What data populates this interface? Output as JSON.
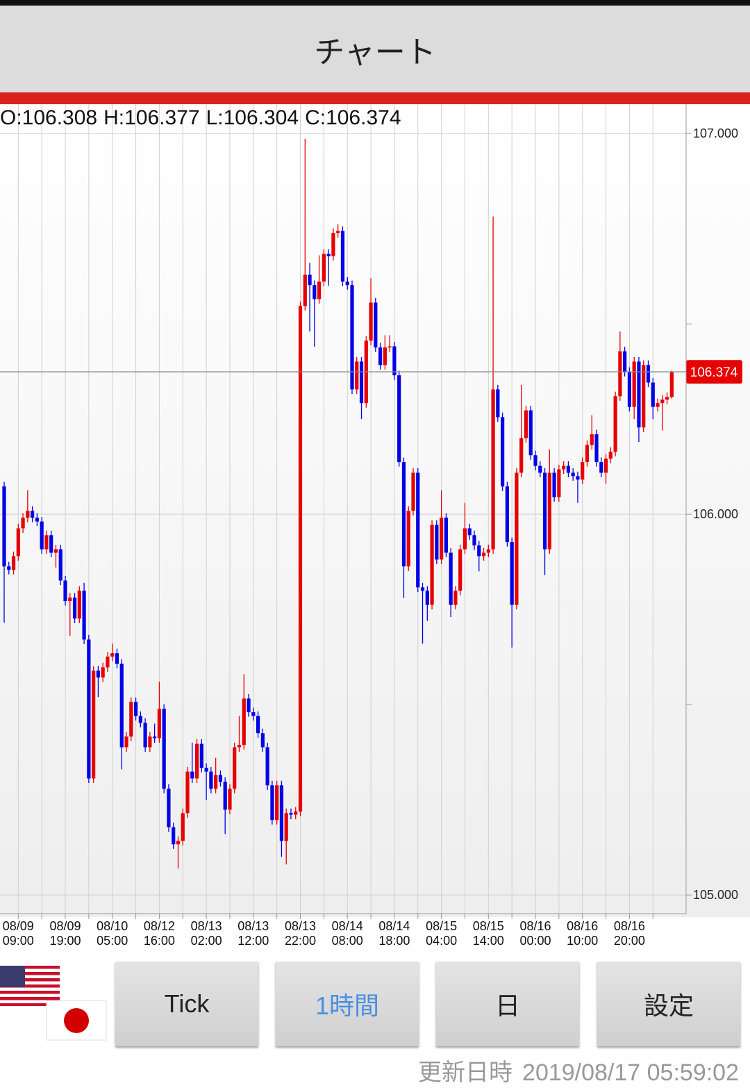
{
  "header": {
    "title": "チャート"
  },
  "ohlc_prefixes": [
    "O:",
    "H:",
    "L:",
    "C:"
  ],
  "chart_data": {
    "type": "candlestick",
    "up_color": "#e60000",
    "down_color": "#0000e6",
    "grid": true,
    "ylim": [
      104.951,
      107.077
    ],
    "yticks": [
      {
        "value": 105,
        "label": "105.000"
      },
      {
        "value": 106,
        "label": "106.000"
      },
      {
        "value": 107,
        "label": "107.000"
      }
    ],
    "yminor_ticks": [
      105.5,
      106.5
    ],
    "categories": [
      null,
      null,
      null,
      "08/09 09:00",
      null,
      null,
      null,
      null,
      null,
      null,
      null,
      null,
      null,
      "08/09 19:00",
      null,
      null,
      null,
      null,
      null,
      null,
      null,
      null,
      null,
      "08/10 05:00",
      null,
      null,
      null,
      null,
      null,
      null,
      null,
      null,
      null,
      "08/12 16:00",
      null,
      null,
      null,
      null,
      null,
      null,
      null,
      null,
      null,
      "08/13 02:00",
      null,
      null,
      null,
      null,
      null,
      null,
      null,
      null,
      null,
      "08/13 12:00",
      null,
      null,
      null,
      null,
      null,
      null,
      null,
      null,
      null,
      "08/13 22:00",
      null,
      null,
      null,
      null,
      null,
      null,
      null,
      null,
      null,
      "08/14 08:00",
      null,
      null,
      null,
      null,
      null,
      null,
      null,
      null,
      null,
      "08/14 18:00",
      null,
      null,
      null,
      null,
      null,
      null,
      null,
      null,
      null,
      "08/15 04:00",
      null,
      null,
      null,
      null,
      null,
      null,
      null,
      null,
      null,
      "08/15 14:00",
      null,
      null,
      null,
      null,
      null,
      null,
      null,
      null,
      null,
      "08/16 00:00",
      null,
      null,
      null,
      null,
      null,
      null,
      null,
      null,
      null,
      "08/16 10:00",
      null,
      null,
      null,
      null,
      null,
      null,
      null,
      null,
      null,
      "08/16 20:00",
      null,
      null,
      null,
      null,
      null,
      null,
      null,
      null,
      null
    ],
    "open": [
      106.073,
      105.863,
      105.854,
      105.89,
      105.963,
      105.991,
      106.009,
      105.991,
      105.981,
      105.908,
      105.945,
      105.899,
      105.908,
      105.826,
      105.772,
      105.781,
      105.726,
      105.799,
      105.671,
      105.306,
      105.589,
      105.571,
      105.598,
      105.626,
      105.635,
      105.607,
      105.388,
      105.416,
      105.507,
      105.47,
      105.452,
      105.388,
      105.416,
      105.412,
      105.489,
      105.279,
      105.178,
      105.133,
      105.142,
      105.215,
      105.324,
      105.306,
      105.397,
      105.334,
      105.324,
      105.279,
      105.315,
      105.297,
      105.224,
      105.279,
      105.388,
      105.394,
      105.516,
      105.48,
      105.47,
      105.425,
      105.388,
      105.288,
      105.197,
      105.288,
      105.142,
      105.215,
      105.211,
      105.219,
      106.547,
      106.629,
      106.602,
      106.565,
      106.611,
      106.684,
      106.678,
      106.739,
      106.744,
      106.611,
      106.602,
      106.328,
      106.401,
      106.292,
      106.456,
      106.556,
      106.438,
      106.392,
      106.438,
      106.441,
      106.365,
      106.137,
      105.863,
      106.009,
      106.109,
      105.808,
      105.799,
      105.762,
      105.972,
      105.881,
      105.991,
      105.899,
      105.762,
      105.799,
      105.908,
      105.963,
      105.945,
      105.918,
      105.89,
      105.899,
      105.908,
      106.328,
      106.255,
      106.073,
      105.927,
      105.762,
      106.109,
      106.2,
      106.273,
      106.155,
      106.127,
      106.109,
      105.908,
      106.109,
      106.045,
      106.118,
      106.127,
      106.109,
      106.1,
      106.091,
      106.137,
      106.182,
      106.21,
      106.137,
      106.109,
      106.146,
      106.164,
      106.31,
      106.428,
      106.374,
      106.282,
      106.401,
      106.228,
      106.392,
      106.346,
      106.282,
      106.292,
      106.301,
      106.308
    ],
    "high": [
      106.085,
      105.875,
      105.902,
      105.975,
      106.003,
      106.063,
      106.021,
      106.003,
      105.993,
      105.957,
      105.957,
      105.92,
      105.92,
      105.838,
      105.793,
      105.793,
      105.811,
      105.82,
      105.683,
      105.601,
      105.601,
      105.61,
      105.638,
      105.66,
      105.647,
      105.619,
      105.428,
      105.519,
      105.519,
      105.482,
      105.464,
      105.428,
      105.45,
      105.56,
      105.501,
      105.291,
      105.19,
      105.154,
      105.227,
      105.336,
      105.4,
      105.409,
      105.409,
      105.346,
      105.336,
      105.36,
      105.327,
      105.309,
      105.291,
      105.4,
      105.47,
      105.58,
      105.528,
      105.492,
      105.482,
      105.437,
      105.4,
      105.3,
      105.3,
      105.3,
      105.227,
      105.227,
      105.231,
      106.559,
      106.986,
      106.66,
      106.614,
      106.68,
      106.696,
      106.696,
      106.751,
      106.762,
      106.756,
      106.623,
      106.614,
      106.413,
      106.413,
      106.468,
      106.62,
      106.568,
      106.45,
      106.47,
      106.47,
      106.453,
      106.377,
      106.149,
      106.021,
      106.121,
      106.121,
      105.82,
      105.811,
      105.984,
      105.984,
      106.063,
      106.003,
      105.911,
      105.811,
      105.92,
      106.03,
      105.975,
      105.957,
      105.93,
      105.911,
      105.92,
      106.782,
      106.34,
      106.267,
      106.085,
      105.939,
      106.121,
      106.34,
      106.285,
      106.285,
      106.167,
      106.139,
      106.121,
      106.17,
      106.121,
      106.13,
      106.139,
      106.139,
      106.121,
      106.112,
      106.149,
      106.194,
      106.26,
      106.222,
      106.149,
      106.158,
      106.176,
      106.322,
      106.48,
      106.44,
      106.386,
      106.413,
      106.413,
      106.404,
      106.404,
      106.358,
      106.304,
      106.313,
      106.32,
      106.377
    ],
    "low": [
      105.715,
      105.842,
      105.842,
      105.878,
      105.951,
      105.979,
      105.979,
      105.969,
      105.896,
      105.896,
      105.887,
      105.86,
      105.814,
      105.76,
      105.68,
      105.714,
      105.714,
      105.659,
      105.294,
      105.294,
      105.52,
      105.559,
      105.586,
      105.614,
      105.595,
      105.33,
      105.376,
      105.404,
      105.458,
      105.44,
      105.376,
      105.376,
      105.4,
      105.4,
      105.267,
      105.166,
      105.121,
      105.07,
      105.13,
      105.203,
      105.294,
      105.294,
      105.322,
      105.25,
      105.267,
      105.267,
      105.285,
      105.16,
      105.212,
      105.267,
      105.376,
      105.382,
      105.468,
      105.458,
      105.413,
      105.376,
      105.276,
      105.185,
      105.185,
      105.1,
      105.08,
      105.199,
      105.199,
      105.207,
      106.535,
      106.48,
      106.44,
      106.553,
      106.599,
      106.6,
      106.666,
      106.727,
      106.599,
      106.59,
      106.316,
      106.316,
      106.25,
      106.28,
      106.444,
      106.426,
      106.38,
      106.38,
      106.426,
      106.353,
      106.125,
      105.78,
      105.851,
      105.997,
      105.796,
      105.66,
      105.72,
      105.75,
      105.869,
      105.869,
      105.887,
      105.73,
      105.75,
      105.787,
      105.896,
      105.933,
      105.906,
      105.85,
      105.878,
      105.887,
      105.896,
      106.243,
      106.061,
      105.915,
      105.65,
      105.75,
      106.097,
      106.188,
      106.143,
      106.115,
      106.097,
      105.84,
      105.896,
      106.033,
      106.033,
      106.106,
      106.097,
      106.088,
      106.03,
      106.079,
      106.125,
      106.17,
      106.125,
      106.097,
      106.08,
      106.134,
      106.152,
      106.298,
      106.362,
      106.27,
      106.25,
      106.19,
      106.216,
      106.334,
      106.25,
      106.27,
      106.22,
      106.289,
      106.304
    ],
    "close": [
      105.863,
      105.854,
      105.89,
      105.963,
      105.991,
      106.009,
      105.991,
      105.981,
      105.908,
      105.945,
      105.899,
      105.908,
      105.826,
      105.772,
      105.781,
      105.726,
      105.799,
      105.671,
      105.306,
      105.589,
      105.571,
      105.598,
      105.626,
      105.635,
      105.607,
      105.388,
      105.416,
      105.507,
      105.47,
      105.452,
      105.388,
      105.416,
      105.412,
      105.489,
      105.279,
      105.178,
      105.133,
      105.142,
      105.215,
      105.324,
      105.306,
      105.397,
      105.334,
      105.324,
      105.279,
      105.315,
      105.297,
      105.224,
      105.279,
      105.388,
      105.394,
      105.516,
      105.48,
      105.47,
      105.425,
      105.388,
      105.288,
      105.197,
      105.288,
      105.142,
      105.215,
      105.211,
      105.219,
      106.547,
      106.629,
      106.602,
      106.565,
      106.611,
      106.684,
      106.678,
      106.739,
      106.744,
      106.611,
      106.602,
      106.328,
      106.401,
      106.292,
      106.456,
      106.556,
      106.438,
      106.392,
      106.438,
      106.441,
      106.365,
      106.137,
      105.863,
      106.009,
      106.109,
      105.808,
      105.799,
      105.762,
      105.972,
      105.881,
      105.991,
      105.899,
      105.762,
      105.799,
      105.908,
      105.963,
      105.945,
      105.918,
      105.89,
      105.899,
      105.908,
      106.328,
      106.255,
      106.073,
      105.927,
      105.762,
      106.109,
      106.2,
      106.273,
      106.155,
      106.127,
      106.109,
      105.908,
      106.109,
      106.045,
      106.118,
      106.127,
      106.109,
      106.1,
      106.091,
      106.137,
      106.182,
      106.21,
      106.137,
      106.109,
      106.146,
      106.164,
      106.31,
      106.428,
      106.374,
      106.282,
      106.401,
      106.228,
      106.392,
      106.346,
      106.282,
      106.292,
      106.301,
      106.308,
      106.374
    ]
  },
  "buttons": [
    {
      "label": "Tick"
    },
    {
      "label": "1時間",
      "selected": true
    },
    {
      "label": "日"
    },
    {
      "label": "設定"
    }
  ],
  "footer": {
    "label": "更新日時",
    "timestamp": "2019/08/17 05:59:02"
  }
}
